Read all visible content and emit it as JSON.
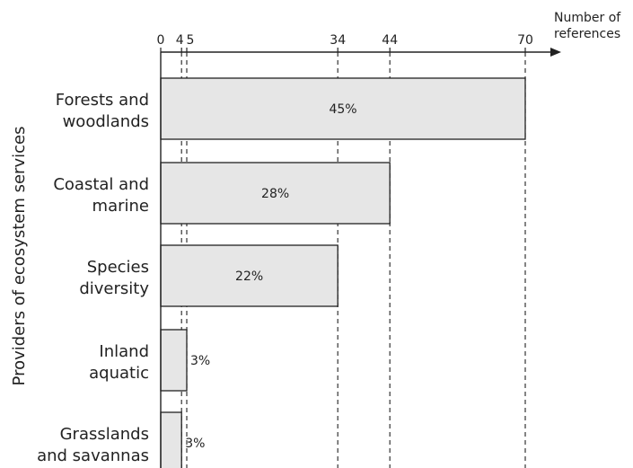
{
  "chart_data": {
    "type": "bar",
    "orientation": "horizontal",
    "categories": [
      "Forests and woodlands",
      "Coastal and marine",
      "Species diversity",
      "Inland aquatic",
      "Grasslands and savannas"
    ],
    "category_lines": [
      [
        "Forests and",
        "woodlands"
      ],
      [
        "Coastal and",
        "marine"
      ],
      [
        "Species",
        "diversity"
      ],
      [
        "Inland",
        "aquatic"
      ],
      [
        "Grasslands",
        "and savannas"
      ]
    ],
    "values": [
      70,
      44,
      34,
      5,
      4
    ],
    "value_labels": [
      "45%",
      "28%",
      "22%",
      "3%",
      "3%"
    ],
    "x_ticks": [
      0,
      4,
      5,
      34,
      44,
      70
    ],
    "xlabel_lines": [
      "Number of",
      "references"
    ],
    "ylabel": "Providers of ecosystem services",
    "xlim": [
      0,
      77
    ],
    "bar_color": "#e6e6e6",
    "grid": "dashed reference lines at bar ends"
  }
}
